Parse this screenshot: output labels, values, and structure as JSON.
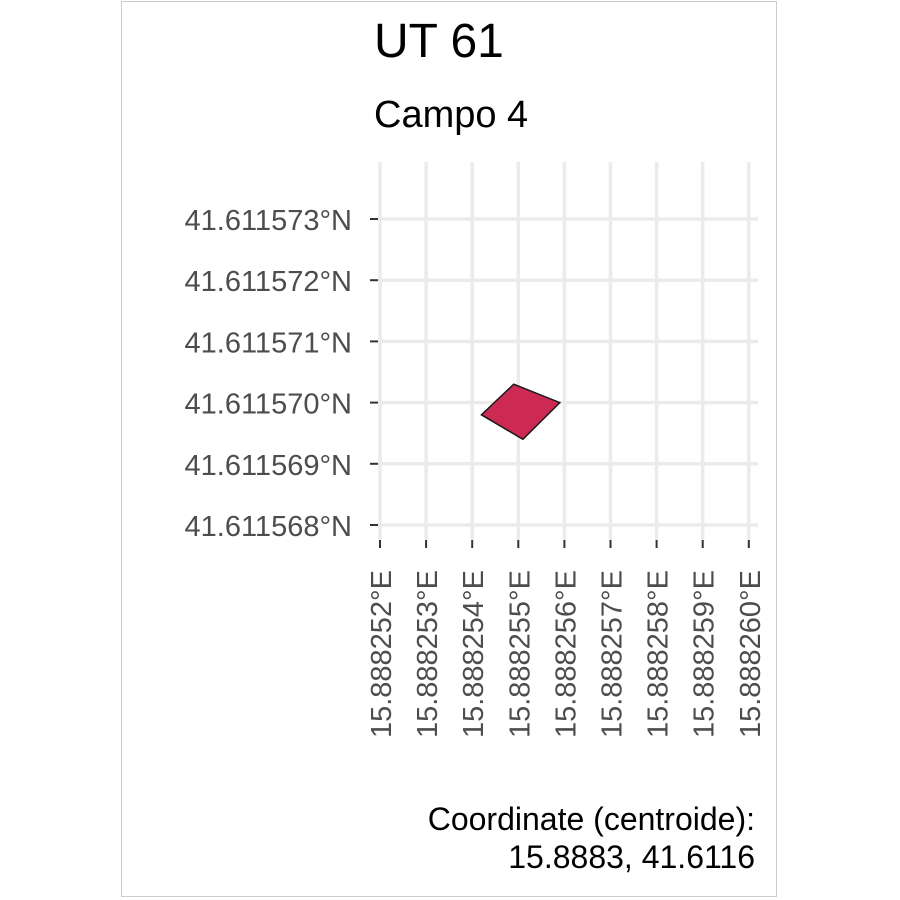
{
  "map": {
    "title": "UT 61",
    "subtitle": "Campo 4",
    "caption_line1": "Coordinate (centroide):",
    "caption_line2": "15.8883, 41.6116",
    "polygon_fill": "#cc2a52",
    "polygon_stroke": "#1a1a1a",
    "grid_color": "#ebebeb",
    "x_ticks": [
      {
        "value": 15.888252,
        "label": "15.888252°E"
      },
      {
        "value": 15.888253,
        "label": "15.888253°E"
      },
      {
        "value": 15.888254,
        "label": "15.888254°E"
      },
      {
        "value": 15.888255,
        "label": "15.888255°E"
      },
      {
        "value": 15.888256,
        "label": "15.888256°E"
      },
      {
        "value": 15.888257,
        "label": "15.888257°E"
      },
      {
        "value": 15.888258,
        "label": "15.888258°E"
      },
      {
        "value": 15.888259,
        "label": "15.888259°E"
      },
      {
        "value": 15.88826,
        "label": "15.888260°E"
      }
    ],
    "y_ticks": [
      {
        "value": 41.611573,
        "label": "41.611573°N"
      },
      {
        "value": 41.611572,
        "label": "41.611572°N"
      },
      {
        "value": 41.611571,
        "label": "41.611571°N"
      },
      {
        "value": 41.61157,
        "label": "41.611570°N"
      },
      {
        "value": 41.611569,
        "label": "41.611569°N"
      },
      {
        "value": 41.611568,
        "label": "41.611568°N"
      }
    ],
    "polygon": [
      [
        15.8882549,
        41.6115703
      ],
      [
        15.8882559,
        41.61157
      ],
      [
        15.8882551,
        41.6115694
      ],
      [
        15.8882542,
        41.6115698
      ]
    ]
  }
}
